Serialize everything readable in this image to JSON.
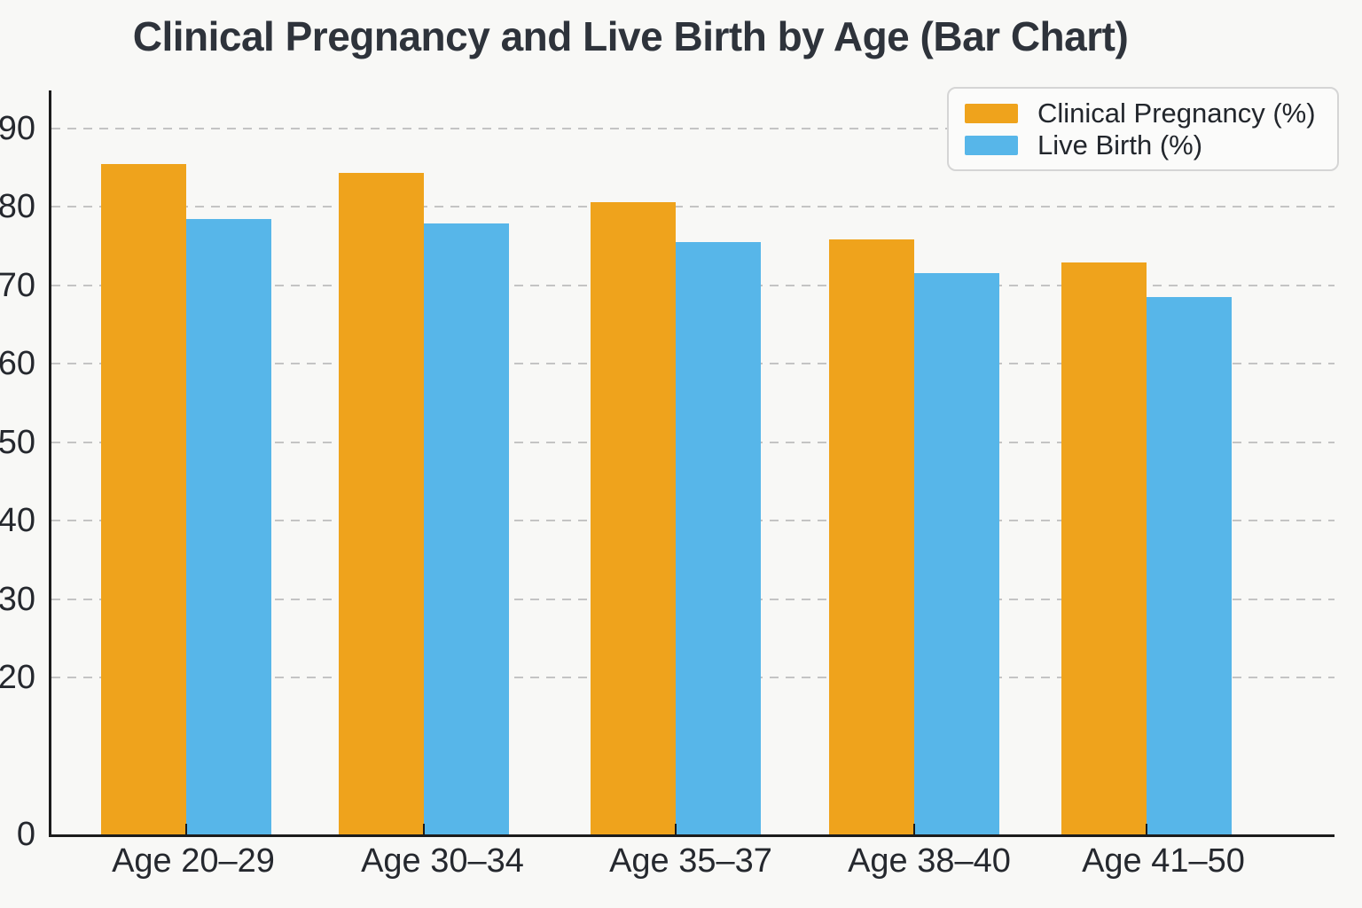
{
  "chart_data": {
    "type": "bar",
    "title": "Clinical Pregnancy and Live Birth by Age (Bar Chart)",
    "categories": [
      "Age 20–29",
      "Age 30–34",
      "Age 35–37",
      "Age 38–40",
      "Age 41–50"
    ],
    "series": [
      {
        "name": "Clinical Pregnancy (%)",
        "color": "#efa31c",
        "values": [
          85.5,
          84.3,
          80.6,
          75.9,
          72.9
        ]
      },
      {
        "name": "Live Birth (%)",
        "color": "#57b6e9",
        "values": [
          78.5,
          77.9,
          75.5,
          71.6,
          68.5
        ]
      }
    ],
    "xlabel": "",
    "ylabel": "",
    "ylim": [
      0,
      95
    ],
    "yticks": [
      0,
      20,
      30,
      40,
      50,
      60,
      70,
      80,
      90
    ],
    "gridline_values": [
      20,
      30,
      40,
      50,
      60,
      70,
      80,
      90
    ],
    "grid": "horizontal dashed",
    "legend_position": "upper right"
  },
  "colors": {
    "background": "#f8f8f6",
    "axis": "#1c1c1c",
    "gridline": "#c4c4c4",
    "title_text": "#2e333b",
    "tick_text": "#25282e"
  }
}
